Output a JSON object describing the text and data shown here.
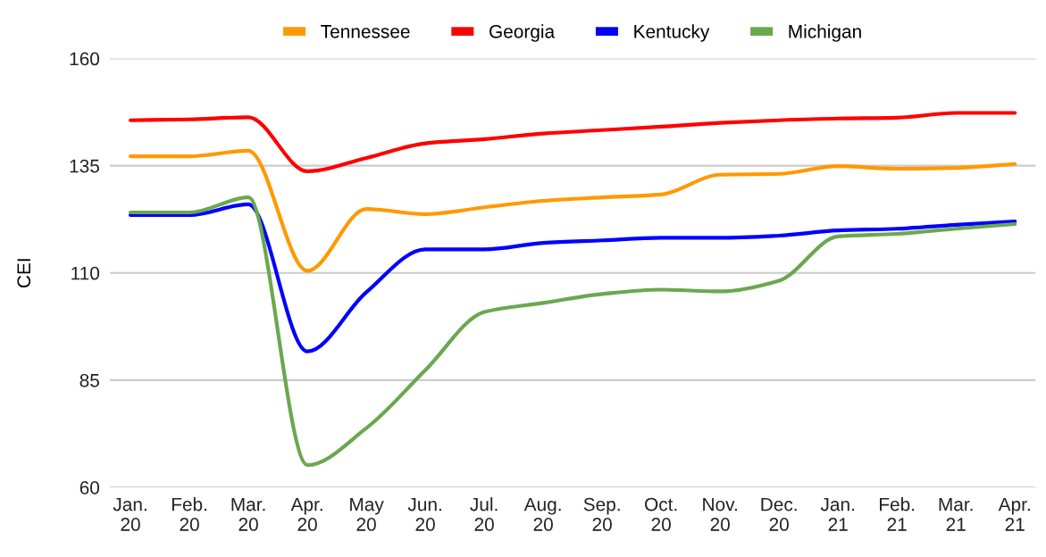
{
  "chart_data": {
    "type": "line",
    "ylabel": "CEI",
    "categories": [
      "Jan.\n20",
      "Feb.\n20",
      "Mar.\n20",
      "Apr.\n20",
      "May\n20",
      "Jun.\n20",
      "Jul.\n20",
      "Aug.\n20",
      "Sep.\n20",
      "Oct.\n20",
      "Nov.\n20",
      "Dec.\n20",
      "Jan.\n21",
      "Feb.\n21",
      "Mar.\n21",
      "Apr.\n21"
    ],
    "series": [
      {
        "name": "Tennessee",
        "color": "#ff9900",
        "values": [
          137.2,
          137.2,
          138.5,
          110.5,
          124.9,
          123.7,
          125.3,
          126.8,
          127.6,
          128.3,
          132.9,
          133.1,
          134.9,
          134.3,
          134.5,
          135.4
        ]
      },
      {
        "name": "Georgia",
        "color": "#ff0000",
        "values": [
          145.6,
          145.8,
          146.3,
          133.7,
          136.8,
          140.2,
          141.2,
          142.5,
          143.3,
          144.1,
          145.0,
          145.6,
          146.0,
          146.2,
          147.3,
          147.3
        ]
      },
      {
        "name": "Kentucky",
        "color": "#0000ff",
        "values": [
          123.5,
          123.5,
          126.0,
          91.7,
          105.5,
          115.5,
          115.5,
          117.0,
          117.6,
          118.2,
          118.2,
          118.7,
          119.9,
          120.3,
          121.2,
          122.0
        ]
      },
      {
        "name": "Michigan",
        "color": "#6aa84f",
        "values": [
          124.1,
          124.1,
          127.6,
          65.2,
          73.8,
          87.3,
          100.9,
          103.0,
          105.1,
          106.1,
          105.7,
          108.2,
          118.5,
          119.1,
          120.3,
          121.4
        ]
      }
    ],
    "ylim": [
      60,
      160
    ],
    "yticks": [
      60,
      85,
      110,
      135,
      160
    ],
    "grid": "y",
    "legend": "top",
    "marker": "none",
    "line_style": "solid"
  }
}
